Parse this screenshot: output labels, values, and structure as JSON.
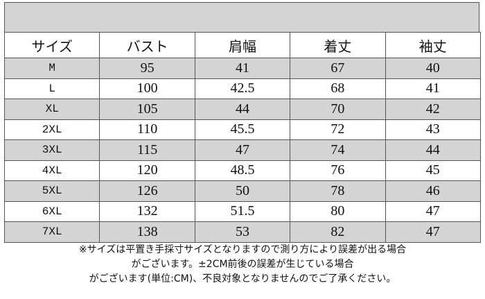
{
  "table": {
    "header": [
      "サイズ",
      "バスト",
      "肩幅",
      "着丈",
      "袖丈"
    ],
    "rows": [
      [
        "M",
        "95",
        "41",
        "67",
        "40"
      ],
      [
        "L",
        "100",
        "42.5",
        "68",
        "41"
      ],
      [
        "XL",
        "105",
        "44",
        "70",
        "42"
      ],
      [
        "2XL",
        "110",
        "45.5",
        "72",
        "43"
      ],
      [
        "3XL",
        "115",
        "47",
        "74",
        "44"
      ],
      [
        "4XL",
        "120",
        "48.5",
        "76",
        "45"
      ],
      [
        "5XL",
        "126",
        "50",
        "78",
        "46"
      ],
      [
        "6XL",
        "132",
        "51.5",
        "80",
        "47"
      ],
      [
        "7XL",
        "138",
        "53",
        "82",
        "47"
      ]
    ]
  },
  "notes": [
    "※サイズは平置き手採寸サイズとなりますので測り方により誤差が出る場合",
    "がございます。±2CM前後の誤差が生じている場合",
    "がございます(単位:CM)、不良対象となりませんのでご了承ください。"
  ]
}
